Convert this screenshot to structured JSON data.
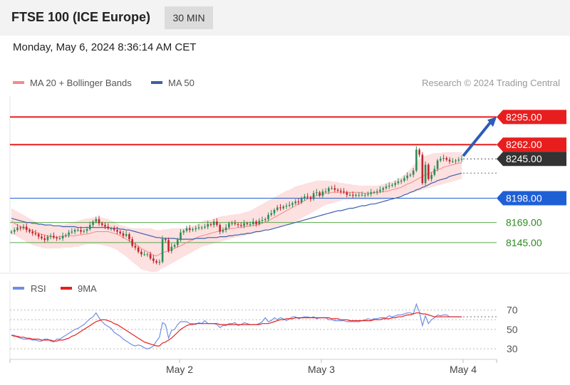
{
  "header": {
    "title": "FTSE 100 (ICE Europe)",
    "timeframe": "30 MIN",
    "datetime": "Monday, May 6, 2024 8:36:14 AM CET"
  },
  "legend": {
    "ma20": "MA 20 + Bollinger Bands",
    "ma50": "MA 50",
    "research": "Research © 2024 Trading Central"
  },
  "rsi_legend": {
    "rsi": "RSI",
    "ma9": "9MA"
  },
  "colors": {
    "resistance": "#e81e1e",
    "support_blue": "#1f5fd6",
    "support_green": "#5aa84a",
    "bull_candle": "#2e8b57",
    "bear_candle": "#c0262c",
    "ma20": "#f28a8a",
    "ma50": "#3d5fa8",
    "bands": "#fde0e0",
    "rsi": "#6f8ee6",
    "rsi_ma": "#e81e1e",
    "arrow": "#2e5cb8"
  },
  "chart_data": {
    "type": "line",
    "title": "FTSE 100 (ICE Europe)",
    "timeframe": "30 MIN",
    "ylim": [
      8110,
      8320
    ],
    "x_ticks": [
      "May 2",
      "May 3",
      "May 4"
    ],
    "last_price": 8245.0,
    "levels": [
      {
        "value": 8295.0,
        "label": "8295.00",
        "role": "resistance",
        "color": "#e81e1e"
      },
      {
        "value": 8262.0,
        "label": "8262.00",
        "role": "resistance",
        "color": "#e81e1e"
      },
      {
        "value": 8245.0,
        "label": "8245.00",
        "role": "last",
        "color": "#222222"
      },
      {
        "value": 8198.0,
        "label": "8198.00",
        "role": "support",
        "color": "#1f5fd6"
      },
      {
        "value": 8169.0,
        "label": "8169.00",
        "role": "support",
        "color": "#2e8b22"
      },
      {
        "value": 8145.0,
        "label": "8145.00",
        "role": "support",
        "color": "#2e8b22"
      }
    ],
    "close": [
      8158,
      8160,
      8163,
      8162,
      8164,
      8160,
      8158,
      8156,
      8155,
      8152,
      8150,
      8148,
      8152,
      8153,
      8151,
      8150,
      8150,
      8153,
      8154,
      8157,
      8158,
      8160,
      8160,
      8158,
      8159,
      8161,
      8166,
      8170,
      8173,
      8168,
      8166,
      8164,
      8162,
      8162,
      8160,
      8158,
      8156,
      8153,
      8155,
      8149,
      8141,
      8139,
      8134,
      8131,
      8131,
      8131,
      8126,
      8123,
      8121,
      8122,
      8149,
      8148,
      8135,
      8140,
      8142,
      8148,
      8157,
      8159,
      8162,
      8160,
      8161,
      8162,
      8163,
      8163,
      8164,
      8167,
      8166,
      8170,
      8166,
      8158,
      8160,
      8163,
      8168,
      8168,
      8167,
      8166,
      8165,
      8168,
      8167,
      8167,
      8170,
      8167,
      8171,
      8172,
      8173,
      8178,
      8180,
      8184,
      8187,
      8186,
      8188,
      8189,
      8190,
      8192,
      8194,
      8193,
      8198,
      8200,
      8199,
      8197,
      8204,
      8205,
      8201,
      8206,
      8206,
      8210,
      8210,
      8208,
      8207,
      8206,
      8205,
      8202,
      8202,
      8201,
      8202,
      8202,
      8202,
      8202,
      8203,
      8205,
      8205,
      8206,
      8208,
      8210,
      8212,
      8213,
      8214,
      8216,
      8218,
      8219,
      8222,
      8225,
      8226,
      8231,
      8256,
      8250,
      8216,
      8238,
      8221,
      8226,
      8233,
      8243,
      8245,
      8246,
      8244,
      8242,
      8242,
      8243,
      8244,
      8245
    ],
    "ma20": [
      8171,
      8168,
      8166,
      8164,
      8163,
      8162,
      8161,
      8159,
      8157,
      8156,
      8155,
      8154,
      8153,
      8152,
      8152,
      8151,
      8152,
      8152,
      8153,
      8153,
      8153,
      8153,
      8154,
      8154,
      8155,
      8155,
      8156,
      8157,
      8158,
      8158,
      8158,
      8158,
      8158,
      8157,
      8156,
      8155,
      8153,
      8151,
      8149,
      8147,
      8145,
      8143,
      8141,
      8138,
      8136,
      8134,
      8132,
      8130,
      8129,
      8131,
      8133,
      8134,
      8135,
      8136,
      8138,
      8140,
      8141,
      8143,
      8145,
      8147,
      8148,
      8150,
      8152,
      8153,
      8154,
      8155,
      8156,
      8157,
      8158,
      8159,
      8160,
      8161,
      8161,
      8162,
      8162,
      8163,
      8163,
      8164,
      8164,
      8165,
      8165,
      8166,
      8167,
      8168,
      8170,
      8171,
      8173,
      8175,
      8177,
      8179,
      8181,
      8183,
      8185,
      8187,
      8189,
      8191,
      8193,
      8195,
      8197,
      8199,
      8200,
      8201,
      8202,
      8203,
      8204,
      8204,
      8205,
      8205,
      8205,
      8205,
      8205,
      8205,
      8205,
      8205,
      8205,
      8205,
      8204,
      8204,
      8204,
      8204,
      8205,
      8205,
      8205,
      8206,
      8206,
      8207,
      8208,
      8209,
      8210,
      8211,
      8213,
      8215,
      8216,
      8218,
      8220,
      8222,
      8224,
      8226,
      8227,
      8229,
      8230,
      8232,
      8233,
      8235,
      8236,
      8237,
      8238,
      8239,
      8240,
      8240
    ],
    "ma50": [
      8174,
      8173,
      8172,
      8171,
      8170,
      8169,
      8169,
      8168,
      8168,
      8167,
      8167,
      8166,
      8166,
      8166,
      8165,
      8165,
      8165,
      8164,
      8164,
      8164,
      8164,
      8164,
      8163,
      8163,
      8163,
      8163,
      8163,
      8163,
      8163,
      8163,
      8163,
      8163,
      8163,
      8162,
      8162,
      8162,
      8161,
      8161,
      8160,
      8160,
      8159,
      8158,
      8157,
      8156,
      8155,
      8154,
      8153,
      8152,
      8151,
      8151,
      8150,
      8150,
      8150,
      8150,
      8150,
      8149,
      8149,
      8149,
      8149,
      8149,
      8149,
      8150,
      8150,
      8150,
      8150,
      8151,
      8151,
      8151,
      8151,
      8152,
      8152,
      8152,
      8153,
      8153,
      8154,
      8154,
      8155,
      8155,
      8156,
      8156,
      8157,
      8158,
      8158,
      8159,
      8160,
      8160,
      8161,
      8162,
      8163,
      8164,
      8165,
      8166,
      8167,
      8168,
      8169,
      8170,
      8171,
      8172,
      8173,
      8174,
      8175,
      8176,
      8177,
      8178,
      8179,
      8180,
      8181,
      8182,
      8183,
      8183,
      8184,
      8185,
      8186,
      8186,
      8187,
      8188,
      8189,
      8189,
      8190,
      8191,
      8191,
      8192,
      8193,
      8194,
      8195,
      8196,
      8197,
      8198,
      8199,
      8200,
      8202,
      8203,
      8205,
      8206,
      8208,
      8209,
      8211,
      8212,
      8214,
      8216,
      8217,
      8219,
      8220,
      8221,
      8222,
      8224,
      8225,
      8226,
      8227,
      8228
    ],
    "bb_upper": [
      8186,
      8184,
      8182,
      8180,
      8178,
      8176,
      8174,
      8172,
      8170,
      8168,
      8167,
      8166,
      8165,
      8165,
      8165,
      8165,
      8165,
      8166,
      8167,
      8168,
      8169,
      8170,
      8171,
      8172,
      8173,
      8174,
      8174,
      8175,
      8175,
      8175,
      8175,
      8174,
      8173,
      8171,
      8170,
      8168,
      8166,
      8165,
      8164,
      8163,
      8162,
      8162,
      8162,
      8162,
      8162,
      8162,
      8162,
      8161,
      8160,
      8160,
      8160,
      8161,
      8161,
      8162,
      8162,
      8162,
      8162,
      8162,
      8163,
      8164,
      8165,
      8166,
      8168,
      8170,
      8172,
      8172,
      8172,
      8174,
      8175,
      8176,
      8177,
      8177,
      8178,
      8178,
      8179,
      8179,
      8180,
      8181,
      8182,
      8183,
      8185,
      8187,
      8189,
      8191,
      8193,
      8195,
      8197,
      8199,
      8201,
      8203,
      8205,
      8207,
      8208,
      8210,
      8212,
      8213,
      8214,
      8215,
      8216,
      8217,
      8218,
      8219,
      8219,
      8219,
      8219,
      8219,
      8218,
      8218,
      8217,
      8216,
      8216,
      8215,
      8215,
      8214,
      8214,
      8213,
      8213,
      8213,
      8213,
      8213,
      8213,
      8213,
      8214,
      8215,
      8216,
      8217,
      8218,
      8219,
      8221,
      8223,
      8226,
      8229,
      8233,
      8237,
      8241,
      8245,
      8247,
      8249,
      8250,
      8251,
      8252,
      8252,
      8252,
      8253,
      8253,
      8253,
      8253,
      8253,
      8253,
      8253
    ],
    "bb_lower": [
      8155,
      8154,
      8152,
      8150,
      8148,
      8146,
      8144,
      8142,
      8141,
      8140,
      8139,
      8138,
      8138,
      8138,
      8138,
      8138,
      8138,
      8139,
      8139,
      8139,
      8139,
      8140,
      8140,
      8141,
      8142,
      8143,
      8143,
      8143,
      8143,
      8143,
      8142,
      8141,
      8140,
      8139,
      8138,
      8136,
      8133,
      8131,
      8128,
      8125,
      8122,
      8119,
      8116,
      8113,
      8112,
      8111,
      8110,
      8110,
      8110,
      8112,
      8114,
      8116,
      8118,
      8120,
      8122,
      8124,
      8126,
      8128,
      8130,
      8132,
      8134,
      8136,
      8138,
      8140,
      8141,
      8142,
      8143,
      8144,
      8145,
      8146,
      8147,
      8148,
      8149,
      8150,
      8151,
      8152,
      8152,
      8153,
      8154,
      8155,
      8156,
      8157,
      8158,
      8159,
      8160,
      8161,
      8162,
      8163,
      8164,
      8165,
      8166,
      8167,
      8168,
      8169,
      8170,
      8172,
      8174,
      8176,
      8178,
      8180,
      8182,
      8184,
      8186,
      8188,
      8190,
      8191,
      8192,
      8193,
      8194,
      8195,
      8196,
      8196,
      8196,
      8196,
      8196,
      8196,
      8196,
      8196,
      8196,
      8196,
      8196,
      8196,
      8196,
      8196,
      8197,
      8197,
      8198,
      8199,
      8200,
      8201,
      8202,
      8203,
      8204,
      8205,
      8206,
      8207,
      8208,
      8209,
      8210,
      8211,
      8212,
      8213,
      8214,
      8215,
      8216,
      8217,
      8218,
      8219,
      8220,
      8221
    ],
    "rsi": {
      "ylim": [
        25,
        80
      ],
      "ticks": [
        30,
        50,
        70
      ],
      "rsi_values": [
        44,
        44,
        42,
        41,
        40,
        40,
        40,
        39,
        39,
        38,
        38,
        40,
        40,
        38,
        37,
        40,
        40,
        42,
        44,
        46,
        48,
        50,
        51,
        53,
        55,
        58,
        61,
        63,
        67,
        62,
        58,
        55,
        53,
        51,
        47,
        45,
        43,
        40,
        38,
        36,
        34,
        33,
        34,
        33,
        31,
        30,
        31,
        33,
        38,
        42,
        57,
        55,
        41,
        49,
        50,
        55,
        58,
        58,
        58,
        56,
        56,
        55,
        57,
        56,
        59,
        56,
        56,
        56,
        55,
        52,
        54,
        54,
        56,
        56,
        57,
        54,
        55,
        57,
        56,
        55,
        55,
        55,
        56,
        58,
        62,
        58,
        59,
        62,
        60,
        62,
        61,
        59,
        61,
        63,
        63,
        61,
        62,
        63,
        63,
        62,
        63,
        61,
        62,
        62,
        62,
        60,
        60,
        59,
        59,
        59,
        59,
        58,
        58,
        58,
        58,
        58,
        59,
        60,
        61,
        60,
        61,
        61,
        62,
        62,
        62,
        64,
        63,
        64,
        65,
        65,
        66,
        67,
        67,
        66,
        76,
        68,
        54,
        64,
        56,
        60,
        62,
        65,
        64,
        65,
        65,
        63,
        63,
        63,
        63,
        63
      ],
      "ma9_values": [
        44,
        43,
        43,
        42,
        42,
        41,
        41,
        40,
        40,
        40,
        39,
        39,
        39,
        39,
        38,
        38,
        39,
        39,
        40,
        41,
        43,
        44,
        46,
        48,
        50,
        52,
        54,
        56,
        58,
        59,
        60,
        60,
        59,
        58,
        56,
        55,
        53,
        51,
        49,
        47,
        45,
        43,
        41,
        39,
        37,
        36,
        35,
        34,
        33,
        33,
        36,
        37,
        39,
        41,
        44,
        47,
        50,
        52,
        54,
        55,
        55,
        56,
        56,
        56,
        56,
        56,
        56,
        56,
        56,
        55,
        55,
        55,
        55,
        55,
        55,
        55,
        55,
        55,
        55,
        55,
        55,
        55,
        55,
        56,
        56,
        56,
        57,
        58,
        59,
        60,
        60,
        61,
        61,
        61,
        62,
        62,
        62,
        62,
        62,
        62,
        62,
        62,
        62,
        62,
        62,
        62,
        61,
        61,
        61,
        60,
        60,
        60,
        59,
        59,
        59,
        59,
        59,
        59,
        59,
        59,
        60,
        60,
        60,
        61,
        61,
        61,
        62,
        62,
        63,
        63,
        64,
        65,
        65,
        66,
        67,
        67,
        66,
        66,
        65,
        64,
        63,
        63,
        63,
        63,
        63,
        63,
        63,
        63,
        63,
        63
      ],
      "ref_lines": [
        70,
        60,
        50,
        30
      ]
    }
  }
}
